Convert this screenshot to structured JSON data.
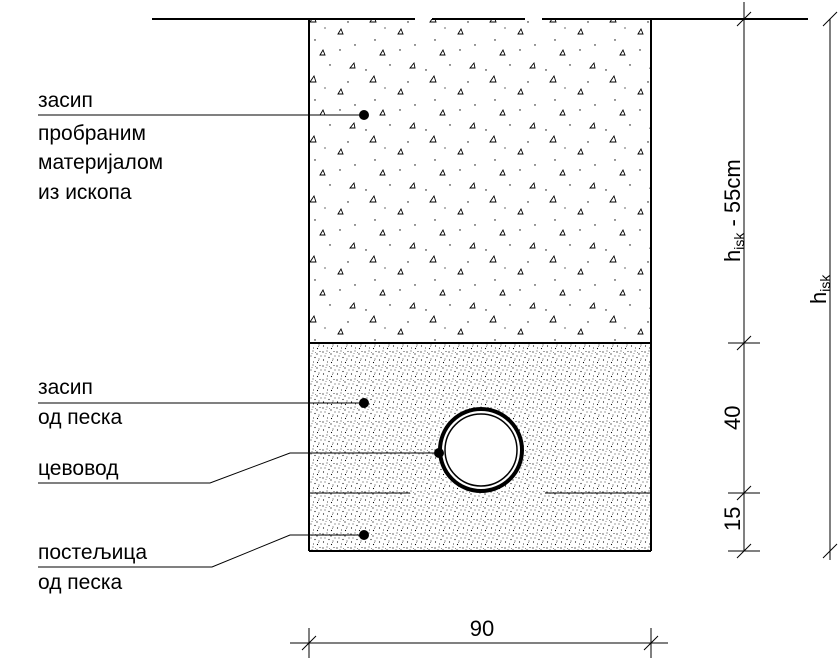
{
  "labels": {
    "fill_excavated": [
      "засип",
      "пробраним",
      "материјалом",
      "из ископа"
    ],
    "fill_sand": [
      "засип",
      "од песка"
    ],
    "pipe": "цевовод",
    "bedding": [
      "постељица",
      "од песка"
    ]
  },
  "dimensions": {
    "top_fill_prefix": "h",
    "top_fill_sub": "isk",
    "top_fill_suffix": " - 55cm",
    "sand_fill": "40",
    "bedding": "15",
    "total_prefix": "h",
    "total_sub": "isk",
    "width": "90"
  },
  "colors": {
    "line": "#000000",
    "background": "#ffffff"
  }
}
